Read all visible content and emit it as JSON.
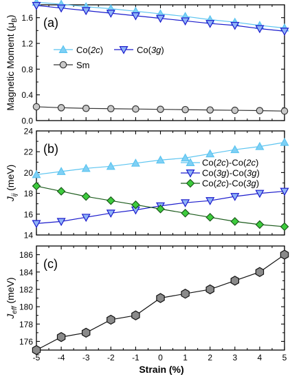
{
  "chart_data": [
    {
      "type": "line",
      "panel_label": "(a)",
      "ylabel": "Magnetic Moment (μ",
      "ylabel_sub": "B",
      "ylabel_tail": ")",
      "ylim": [
        0.0,
        1.8
      ],
      "yticks": [
        0.0,
        0.4,
        0.8,
        1.2,
        1.6
      ],
      "ytick_labels": [
        "0.0",
        "0.4",
        "0.8",
        "1.2",
        "1.6"
      ],
      "x": [
        -5,
        -4,
        -3,
        -2,
        -1,
        0,
        1,
        2,
        3,
        4,
        5
      ],
      "series": [
        {
          "name": "Co(2c)",
          "name_parts": [
            "Co(",
            "2c",
            ")"
          ],
          "marker": "triangle-up",
          "color": "#7fd0f5",
          "stroke": "#5bc4f0",
          "values": [
            1.84,
            1.81,
            1.77,
            1.74,
            1.7,
            1.66,
            1.62,
            1.57,
            1.53,
            1.48,
            1.44
          ]
        },
        {
          "name": "Co(3g)",
          "name_parts": [
            "Co(",
            "3g",
            ")"
          ],
          "marker": "triangle-down",
          "color": "#8fb3f7",
          "stroke": "#1a1acc",
          "values": [
            1.79,
            1.75,
            1.71,
            1.67,
            1.63,
            1.59,
            1.55,
            1.51,
            1.48,
            1.43,
            1.39
          ]
        },
        {
          "name": "Sm",
          "name_parts": [
            "Sm",
            "",
            ""
          ],
          "marker": "circle",
          "color": "#c8c8c8",
          "stroke": "#333333",
          "values": [
            0.215,
            0.2,
            0.19,
            0.185,
            0.18,
            0.175,
            0.17,
            0.165,
            0.16,
            0.155,
            0.148
          ]
        }
      ]
    },
    {
      "type": "line",
      "panel_label": "(b)",
      "ylabel": "J",
      "ylabel_sub": "ij",
      "ylabel_tail": " (meV)",
      "ylim": [
        14,
        24
      ],
      "yticks": [
        14,
        16,
        18,
        20,
        22,
        24
      ],
      "ytick_labels": [
        "14",
        "16",
        "18",
        "20",
        "22",
        "24"
      ],
      "x": [
        -5,
        -4,
        -3,
        -2,
        -1,
        0,
        1,
        2,
        3,
        4,
        5
      ],
      "series": [
        {
          "name": "Co(2c)-Co(2c)",
          "name_parts": [
            "Co(",
            "2c",
            ")-Co(",
            "2c",
            ")"
          ],
          "marker": "triangle-up",
          "color": "#7fd0f5",
          "stroke": "#5bc4f0",
          "values": [
            19.8,
            20.1,
            20.4,
            20.6,
            20.9,
            21.2,
            21.4,
            21.8,
            22.2,
            22.5,
            22.9
          ]
        },
        {
          "name": "Co(3g)-Co(3g)",
          "name_parts": [
            "Co(",
            "3g",
            ")-Co(",
            "3g",
            ")"
          ],
          "marker": "triangle-down",
          "color": "#8fb3f7",
          "stroke": "#1a1acc",
          "values": [
            15.1,
            15.3,
            15.7,
            16.1,
            16.4,
            16.8,
            17.1,
            17.3,
            17.7,
            18.0,
            18.2
          ]
        },
        {
          "name": "Co(2c)-Co(3g)",
          "name_parts": [
            "Co(",
            "2c",
            ")-Co(",
            "3g",
            ")"
          ],
          "marker": "diamond",
          "color": "#3dcc3d",
          "stroke": "#1a5a1a",
          "values": [
            18.7,
            18.2,
            17.7,
            17.3,
            16.9,
            16.5,
            16.1,
            15.7,
            15.3,
            15.0,
            14.8
          ]
        }
      ]
    },
    {
      "type": "line",
      "panel_label": "(c)",
      "ylabel": "J",
      "ylabel_sub": "eff",
      "ylabel_tail": " (meV)",
      "ylim": [
        175,
        187
      ],
      "yticks": [
        176,
        178,
        180,
        182,
        184,
        186
      ],
      "ytick_labels": [
        "176",
        "178",
        "180",
        "182",
        "184",
        "186"
      ],
      "x": [
        -5,
        -4,
        -3,
        -2,
        -1,
        0,
        1,
        2,
        3,
        4,
        5
      ],
      "series": [
        {
          "name": "",
          "marker": "hexagon",
          "color": "#8a8a8a",
          "stroke": "#111111",
          "values": [
            175.0,
            176.5,
            177.0,
            178.5,
            179.0,
            181.0,
            181.5,
            182.0,
            183.0,
            184.0,
            186.0
          ]
        }
      ]
    }
  ],
  "xaxis": {
    "label": "Strain (%)",
    "xlim": [
      -5,
      5
    ],
    "ticks": [
      -5,
      -4,
      -3,
      -2,
      -1,
      0,
      1,
      2,
      3,
      4,
      5
    ],
    "tick_labels": [
      "-5",
      "-4",
      "-3",
      "-2",
      "-1",
      "0",
      "1",
      "2",
      "3",
      "4",
      "5"
    ]
  }
}
